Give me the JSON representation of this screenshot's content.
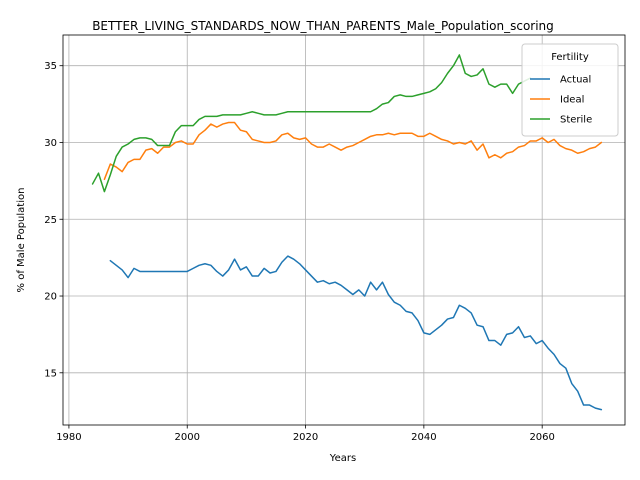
{
  "chart_data": {
    "type": "line",
    "title": "BETTER_LIVING_STANDARDS_NOW_THAN_PARENTS_Male_Population_scoring",
    "xlabel": "Years",
    "ylabel": "% of Male Population",
    "xlim": [
      1979,
      2074
    ],
    "ylim": [
      11.6,
      37.0
    ],
    "xticks": [
      1980,
      2000,
      2020,
      2040,
      2060
    ],
    "yticks": [
      15,
      20,
      25,
      30,
      35
    ],
    "grid": true,
    "legend": {
      "title": "Fertility",
      "placement": "top-right"
    },
    "series": [
      {
        "name": "Actual",
        "color": "#1f77b4",
        "x": [
          1987,
          1988,
          1989,
          1990,
          1991,
          1992,
          1993,
          1994,
          1995,
          1996,
          1997,
          1998,
          1999,
          2000,
          2001,
          2002,
          2003,
          2004,
          2005,
          2006,
          2007,
          2008,
          2009,
          2010,
          2011,
          2012,
          2013,
          2014,
          2015,
          2016,
          2017,
          2018,
          2019,
          2020,
          2021,
          2022,
          2023,
          2024,
          2025,
          2026,
          2027,
          2028,
          2029,
          2030,
          2031,
          2032,
          2033,
          2034,
          2035,
          2036,
          2037,
          2038,
          2039,
          2040,
          2041,
          2042,
          2043,
          2044,
          2045,
          2046,
          2047,
          2048,
          2049,
          2050,
          2051,
          2052,
          2053,
          2054,
          2055,
          2056,
          2057,
          2058,
          2059,
          2060,
          2061,
          2062,
          2063,
          2064,
          2065,
          2066,
          2067,
          2068,
          2069,
          2070
        ],
        "values": [
          22.3,
          22.0,
          21.7,
          21.2,
          21.8,
          21.6,
          21.6,
          21.6,
          21.6,
          21.6,
          21.6,
          21.6,
          21.6,
          21.6,
          21.8,
          22.0,
          22.1,
          22.0,
          21.6,
          21.3,
          21.7,
          22.4,
          21.7,
          21.9,
          21.3,
          21.3,
          21.8,
          21.5,
          21.6,
          22.2,
          22.6,
          22.4,
          22.1,
          21.7,
          21.3,
          20.9,
          21.0,
          20.8,
          20.9,
          20.7,
          20.4,
          20.1,
          20.4,
          20.0,
          20.9,
          20.4,
          20.9,
          20.1,
          19.6,
          19.4,
          19.0,
          18.9,
          18.4,
          17.6,
          17.5,
          17.8,
          18.1,
          18.5,
          18.6,
          19.4,
          19.2,
          18.9,
          18.1,
          18.0,
          17.1,
          17.1,
          16.8,
          17.5,
          17.6,
          18.0,
          17.3,
          17.4,
          16.9,
          17.1,
          16.6,
          16.2,
          15.6,
          15.3,
          14.3,
          13.8,
          12.9,
          12.9,
          12.7,
          12.6
        ]
      },
      {
        "name": "Ideal",
        "color": "#ff7f0e",
        "x": [
          1986,
          1987,
          1988,
          1989,
          1990,
          1991,
          1992,
          1993,
          1994,
          1995,
          1996,
          1997,
          1998,
          1999,
          2000,
          2001,
          2002,
          2003,
          2004,
          2005,
          2006,
          2007,
          2008,
          2009,
          2010,
          2011,
          2012,
          2013,
          2014,
          2015,
          2016,
          2017,
          2018,
          2019,
          2020,
          2021,
          2022,
          2023,
          2024,
          2025,
          2026,
          2027,
          2028,
          2029,
          2030,
          2031,
          2032,
          2033,
          2034,
          2035,
          2036,
          2037,
          2038,
          2039,
          2040,
          2041,
          2042,
          2043,
          2044,
          2045,
          2046,
          2047,
          2048,
          2049,
          2050,
          2051,
          2052,
          2053,
          2054,
          2055,
          2056,
          2057,
          2058,
          2059,
          2060,
          2061,
          2062,
          2063,
          2064,
          2065,
          2066,
          2067,
          2068,
          2069,
          2070
        ],
        "values": [
          27.6,
          28.6,
          28.4,
          28.1,
          28.7,
          28.9,
          28.9,
          29.5,
          29.6,
          29.3,
          29.7,
          29.7,
          30.0,
          30.1,
          29.9,
          29.9,
          30.5,
          30.8,
          31.2,
          31.0,
          31.2,
          31.3,
          31.3,
          30.8,
          30.7,
          30.2,
          30.1,
          30.0,
          30.0,
          30.1,
          30.5,
          30.6,
          30.3,
          30.2,
          30.3,
          29.9,
          29.7,
          29.7,
          29.9,
          29.7,
          29.5,
          29.7,
          29.8,
          30.0,
          30.2,
          30.4,
          30.5,
          30.5,
          30.6,
          30.5,
          30.6,
          30.6,
          30.6,
          30.4,
          30.4,
          30.6,
          30.4,
          30.2,
          30.1,
          29.9,
          30.0,
          29.9,
          30.1,
          29.5,
          29.9,
          29.0,
          29.2,
          29.0,
          29.3,
          29.4,
          29.7,
          29.8,
          30.1,
          30.1,
          30.3,
          30.0,
          30.2,
          29.8,
          29.6,
          29.5,
          29.3,
          29.4,
          29.6,
          29.7,
          30.0
        ]
      },
      {
        "name": "Sterile",
        "color": "#2ca02c",
        "x": [
          1984,
          1985,
          1986,
          1987,
          1988,
          1989,
          1990,
          1991,
          1992,
          1993,
          1994,
          1995,
          1996,
          1997,
          1998,
          1999,
          2000,
          2001,
          2002,
          2003,
          2004,
          2005,
          2006,
          2007,
          2008,
          2009,
          2010,
          2011,
          2012,
          2013,
          2014,
          2015,
          2016,
          2017,
          2018,
          2019,
          2020,
          2021,
          2022,
          2023,
          2024,
          2025,
          2026,
          2027,
          2028,
          2029,
          2030,
          2031,
          2032,
          2033,
          2034,
          2035,
          2036,
          2037,
          2038,
          2039,
          2040,
          2041,
          2042,
          2043,
          2044,
          2045,
          2046,
          2047,
          2048,
          2049,
          2050,
          2051,
          2052,
          2053,
          2054,
          2055,
          2056,
          2057,
          2058
        ],
        "values": [
          27.3,
          28.0,
          26.8,
          27.9,
          29.1,
          29.7,
          29.9,
          30.2,
          30.3,
          30.3,
          30.2,
          29.8,
          29.8,
          29.8,
          30.7,
          31.1,
          31.1,
          31.1,
          31.5,
          31.7,
          31.7,
          31.7,
          31.8,
          31.8,
          31.8,
          31.8,
          31.9,
          32.0,
          31.9,
          31.8,
          31.8,
          31.8,
          31.9,
          32.0,
          32.0,
          32.0,
          32.0,
          32.0,
          32.0,
          32.0,
          32.0,
          32.0,
          32.0,
          32.0,
          32.0,
          32.0,
          32.0,
          32.0,
          32.2,
          32.5,
          32.6,
          33.0,
          33.1,
          33.0,
          33.0,
          33.1,
          33.2,
          33.3,
          33.5,
          33.9,
          34.5,
          35.0,
          35.7,
          34.5,
          34.3,
          34.4,
          34.8,
          33.8,
          33.6,
          33.8,
          33.8,
          33.2,
          33.8,
          34.0,
          34.2
        ]
      }
    ]
  }
}
